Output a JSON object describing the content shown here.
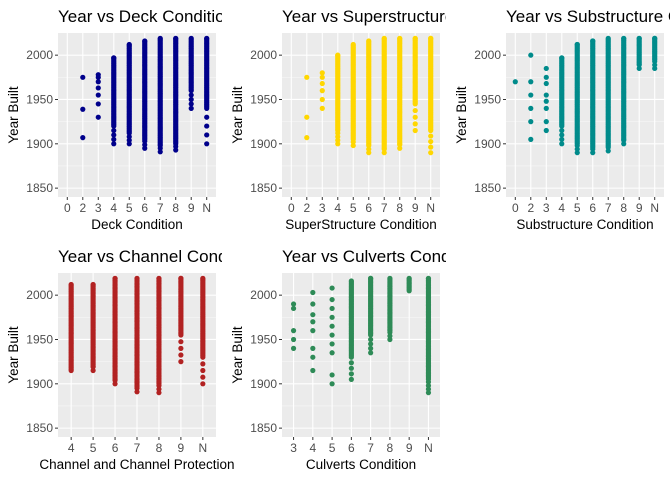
{
  "chart_data": [
    {
      "type": "scatter",
      "title": "Year vs Deck Condition",
      "xlabel": "Deck Condition",
      "ylabel": "Year Built",
      "color": "#00008B",
      "categories": [
        "0",
        "2",
        "3",
        "4",
        "5",
        "6",
        "7",
        "8",
        "9",
        "N"
      ],
      "ylim": [
        1840,
        2025
      ],
      "yticks": [
        1850,
        1900,
        1950,
        2000
      ],
      "grid": true,
      "points_by_category": {
        "0": [],
        "2": [
          1907,
          1939,
          1975
        ],
        "3": [
          1930,
          1945,
          1955,
          1963,
          1970,
          1975,
          1978
        ],
        "4": {
          "range": [
            1900,
            1997
          ],
          "dense_from": 1920
        },
        "5": {
          "range": [
            1900,
            2012
          ],
          "dense_from": 1912
        },
        "6": {
          "range": [
            1895,
            2016
          ],
          "dense_from": 1905
        },
        "7": {
          "range": [
            1891,
            2019
          ],
          "dense_from": 1898
        },
        "8": {
          "range": [
            1893,
            2019
          ],
          "dense_from": 1900
        },
        "9": {
          "range": [
            1940,
            2019
          ],
          "dense_from": 1960
        },
        "N": {
          "range": [
            1900,
            2019
          ],
          "dense_from": 1940
        }
      }
    },
    {
      "type": "scatter",
      "title": "Year vs Superstructure Condition",
      "xlabel": "SuperStructure Condition",
      "ylabel": "Year Built",
      "color": "#FFD700",
      "categories": [
        "0",
        "2",
        "3",
        "4",
        "5",
        "6",
        "7",
        "8",
        "9",
        "N"
      ],
      "ylim": [
        1840,
        2025
      ],
      "yticks": [
        1850,
        1900,
        1950,
        2000
      ],
      "grid": true,
      "points_by_category": {
        "0": [],
        "2": [
          1907,
          1930,
          1975
        ],
        "3": [
          1940,
          1950,
          1960,
          1968,
          1975,
          1980
        ],
        "4": {
          "range": [
            1900,
            2000
          ],
          "dense_from": 1915
        },
        "5": {
          "range": [
            1898,
            2012
          ],
          "dense_from": 1905
        },
        "6": {
          "range": [
            1890,
            2016
          ],
          "dense_from": 1898
        },
        "7": {
          "range": [
            1890,
            2019
          ],
          "dense_from": 1895
        },
        "8": {
          "range": [
            1895,
            2019
          ],
          "dense_from": 1900
        },
        "9": {
          "range": [
            1915,
            2019
          ],
          "dense_from": 1945
        },
        "N": {
          "range": [
            1890,
            2019
          ],
          "dense_from": 1915
        }
      }
    },
    {
      "type": "scatter",
      "title": "Year vs Substructure Condition",
      "xlabel": "Substructure Condition",
      "ylabel": "Year Built",
      "color": "#008B8B",
      "categories": [
        "0",
        "2",
        "3",
        "4",
        "5",
        "6",
        "7",
        "8",
        "9",
        "N"
      ],
      "ylim": [
        1840,
        2025
      ],
      "yticks": [
        1850,
        1900,
        1950,
        2000
      ],
      "grid": true,
      "points_by_category": {
        "0": [
          1970
        ],
        "2": [
          1905,
          1925,
          1940,
          1955,
          1970,
          2000
        ],
        "3": [
          1915,
          1925,
          1940,
          1948,
          1955,
          1968,
          1975,
          1985
        ],
        "4": {
          "range": [
            1900,
            1997
          ],
          "dense_from": 1920
        },
        "5": {
          "range": [
            1890,
            2012
          ],
          "dense_from": 1900
        },
        "6": {
          "range": [
            1890,
            2016
          ],
          "dense_from": 1896
        },
        "7": {
          "range": [
            1892,
            2019
          ],
          "dense_from": 1896
        },
        "8": {
          "range": [
            1900,
            2019
          ],
          "dense_from": 1905
        },
        "9": {
          "range": [
            1985,
            2019
          ],
          "dense_from": 1990
        },
        "N": {
          "range": [
            1985,
            2019
          ],
          "dense_from": 1995
        }
      }
    },
    {
      "type": "scatter",
      "title": "Year vs Channel Condition",
      "xlabel": "Channel and Channel Protection",
      "ylabel": "Year Built",
      "color": "#B22222",
      "categories": [
        "4",
        "5",
        "6",
        "7",
        "8",
        "9",
        "N"
      ],
      "ylim": [
        1840,
        2025
      ],
      "yticks": [
        1850,
        1900,
        1950,
        2000
      ],
      "grid": true,
      "points_by_category": {
        "4": {
          "range": [
            1915,
            2012
          ],
          "dense_from": 1915
        },
        "5": {
          "range": [
            1915,
            2012
          ],
          "dense_from": 1920
        },
        "6": {
          "range": [
            1900,
            2019
          ],
          "dense_from": 1905
        },
        "7": {
          "range": [
            1891,
            2019
          ],
          "dense_from": 1895
        },
        "8": {
          "range": [
            1890,
            2019
          ],
          "dense_from": 1900
        },
        "9": {
          "range": [
            1925,
            2019
          ],
          "dense_from": 1955
        },
        "N": {
          "range": [
            1900,
            2019
          ],
          "dense_from": 1930
        }
      }
    },
    {
      "type": "scatter",
      "title": "Year vs Culverts Condition",
      "xlabel": "Culverts Condition",
      "ylabel": "Year Built",
      "color": "#2E8B57",
      "categories": [
        "3",
        "4",
        "5",
        "6",
        "7",
        "8",
        "9",
        "N"
      ],
      "ylim": [
        1840,
        2025
      ],
      "yticks": [
        1850,
        1900,
        1950,
        2000
      ],
      "grid": true,
      "points_by_category": {
        "3": [
          1940,
          1950,
          1960,
          1985,
          1990
        ],
        "4": [
          1915,
          1930,
          1940,
          1960,
          1970,
          1978,
          1990,
          2003
        ],
        "5": [
          1900,
          1910,
          1935,
          1945,
          1955,
          1965,
          1975,
          1985,
          1995,
          2008
        ],
        "6": {
          "range": [
            1905,
            2016
          ],
          "dense_from": 1930
        },
        "7": {
          "range": [
            1935,
            2019
          ],
          "dense_from": 1955
        },
        "8": {
          "range": [
            1950,
            2019
          ],
          "dense_from": 1960
        },
        "9": {
          "range": [
            2005,
            2019
          ],
          "dense_from": 2005
        },
        "N": {
          "range": [
            1890,
            2019
          ],
          "dense_from": 1905
        }
      }
    }
  ]
}
